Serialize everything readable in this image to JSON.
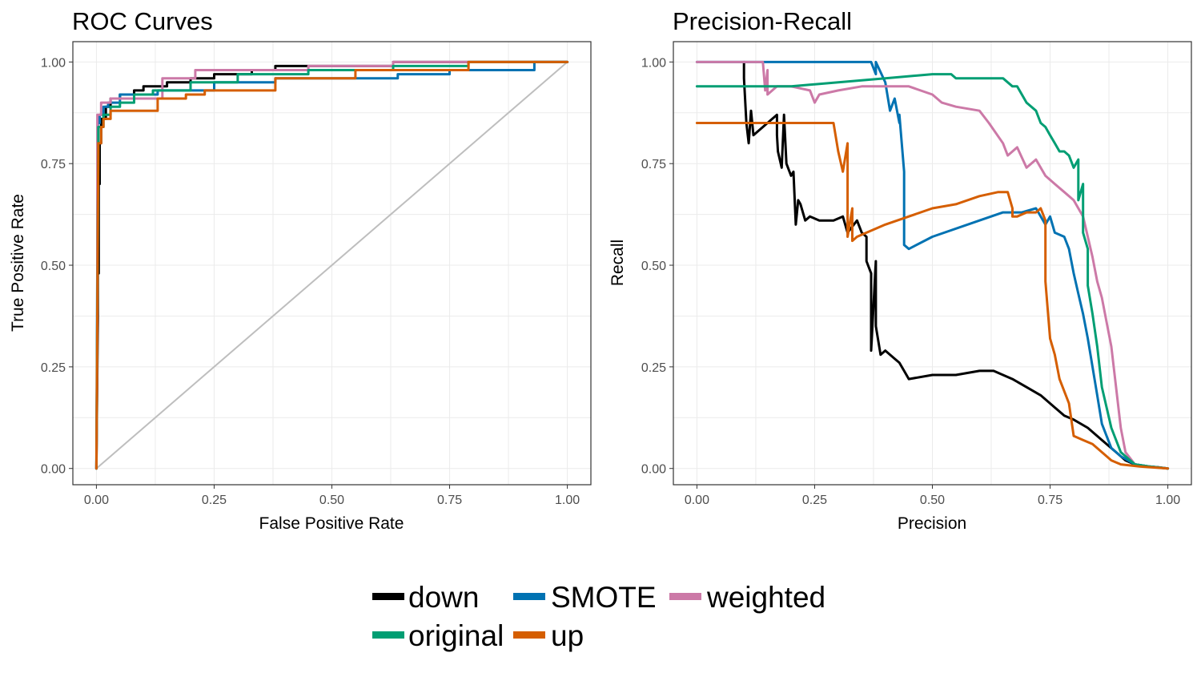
{
  "legend": {
    "items": [
      {
        "label": "down",
        "color": "#000000"
      },
      {
        "label": "SMOTE",
        "color": "#0072B2"
      },
      {
        "label": "weighted",
        "color": "#CC79A7"
      },
      {
        "label": "original",
        "color": "#009E73"
      },
      {
        "label": "up",
        "color": "#D55E00"
      }
    ]
  },
  "chart_data": [
    {
      "type": "line",
      "title": "ROC Curves",
      "xlabel": "False Positive Rate",
      "ylabel": "True Positive Rate",
      "xlim": [
        -0.05,
        1.05
      ],
      "ylim": [
        -0.04,
        1.05
      ],
      "xticks": [
        "0.00",
        "0.25",
        "0.50",
        "0.75",
        "1.00"
      ],
      "yticks": [
        "0.00",
        "0.25",
        "0.50",
        "0.75",
        "1.00"
      ],
      "grid": true,
      "reference_line": {
        "x": [
          0,
          1
        ],
        "y": [
          0,
          1
        ],
        "color": "#bebebe"
      },
      "series": [
        {
          "name": "down",
          "color": "#000000",
          "x": [
            0,
            0.003,
            0.003,
            0.005,
            0.005,
            0.007,
            0.007,
            0.01,
            0.01,
            0.02,
            0.02,
            0.03,
            0.03,
            0.05,
            0.05,
            0.08,
            0.08,
            0.1,
            0.1,
            0.15,
            0.15,
            0.2,
            0.2,
            0.25,
            0.25,
            0.33,
            0.33,
            0.38,
            0.38,
            0.63,
            0.63,
            0.79,
            0.79,
            1.0
          ],
          "y": [
            0,
            0.37,
            0.48,
            0.48,
            0.7,
            0.7,
            0.8,
            0.8,
            0.86,
            0.86,
            0.89,
            0.89,
            0.91,
            0.91,
            0.92,
            0.92,
            0.93,
            0.93,
            0.94,
            0.94,
            0.95,
            0.95,
            0.96,
            0.96,
            0.97,
            0.97,
            0.98,
            0.98,
            0.99,
            0.99,
            1.0,
            1.0,
            1.0,
            1.0
          ]
        },
        {
          "name": "SMOTE",
          "color": "#0072B2",
          "x": [
            0,
            0.003,
            0.003,
            0.007,
            0.007,
            0.015,
            0.015,
            0.025,
            0.025,
            0.05,
            0.05,
            0.13,
            0.13,
            0.25,
            0.25,
            0.38,
            0.38,
            0.64,
            0.64,
            0.75,
            0.75,
            0.93,
            0.93,
            1.0
          ],
          "y": [
            0,
            0.78,
            0.85,
            0.85,
            0.87,
            0.87,
            0.89,
            0.89,
            0.9,
            0.9,
            0.92,
            0.92,
            0.93,
            0.93,
            0.95,
            0.95,
            0.96,
            0.96,
            0.97,
            0.97,
            0.98,
            0.98,
            1.0,
            1.0
          ]
        },
        {
          "name": "weighted",
          "color": "#CC79A7",
          "x": [
            0,
            0.002,
            0.002,
            0.01,
            0.01,
            0.03,
            0.03,
            0.14,
            0.14,
            0.21,
            0.21,
            0.45,
            0.45,
            0.63,
            0.63,
            1.0
          ],
          "y": [
            0,
            0.3,
            0.87,
            0.87,
            0.9,
            0.9,
            0.91,
            0.91,
            0.96,
            0.96,
            0.98,
            0.98,
            0.99,
            0.99,
            1.0,
            1.0
          ]
        },
        {
          "name": "original",
          "color": "#009E73",
          "x": [
            0,
            0.004,
            0.004,
            0.015,
            0.015,
            0.03,
            0.03,
            0.05,
            0.05,
            0.08,
            0.08,
            0.12,
            0.12,
            0.2,
            0.2,
            0.3,
            0.3,
            0.45,
            0.45,
            0.63,
            0.63,
            0.79,
            0.79,
            1.0
          ],
          "y": [
            0,
            0.8,
            0.84,
            0.84,
            0.87,
            0.87,
            0.89,
            0.89,
            0.9,
            0.9,
            0.92,
            0.92,
            0.93,
            0.93,
            0.95,
            0.95,
            0.97,
            0.97,
            0.98,
            0.98,
            0.99,
            0.99,
            1.0,
            1.0
          ]
        },
        {
          "name": "up",
          "color": "#D55E00",
          "x": [
            0,
            0.004,
            0.004,
            0.01,
            0.01,
            0.015,
            0.015,
            0.03,
            0.03,
            0.13,
            0.13,
            0.19,
            0.19,
            0.23,
            0.23,
            0.38,
            0.38,
            0.55,
            0.55,
            0.79,
            0.79,
            1.0
          ],
          "y": [
            0,
            0.78,
            0.8,
            0.8,
            0.84,
            0.84,
            0.86,
            0.86,
            0.88,
            0.88,
            0.91,
            0.91,
            0.92,
            0.92,
            0.93,
            0.93,
            0.96,
            0.96,
            0.98,
            0.98,
            1.0,
            1.0
          ]
        }
      ]
    },
    {
      "type": "line",
      "title": "Precision-Recall",
      "xlabel": "Precision",
      "ylabel": "Recall",
      "xlim": [
        -0.05,
        1.05
      ],
      "ylim": [
        -0.04,
        1.05
      ],
      "xticks": [
        "0.00",
        "0.25",
        "0.50",
        "0.75",
        "1.00"
      ],
      "yticks": [
        "0.00",
        "0.25",
        "0.50",
        "0.75",
        "1.00"
      ],
      "grid": true,
      "series": [
        {
          "name": "down",
          "color": "#000000",
          "x": [
            0.1,
            0.1,
            0.105,
            0.11,
            0.115,
            0.12,
            0.14,
            0.17,
            0.17,
            0.172,
            0.18,
            0.185,
            0.19,
            0.2,
            0.205,
            0.21,
            0.215,
            0.22,
            0.23,
            0.24,
            0.26,
            0.29,
            0.31,
            0.32,
            0.34,
            0.35,
            0.36,
            0.36,
            0.37,
            0.37,
            0.38,
            0.38,
            0.39,
            0.4,
            0.41,
            0.42,
            0.43,
            0.44,
            0.45,
            0.5,
            0.55,
            0.6,
            0.63,
            0.65,
            0.67,
            0.7,
            0.73,
            0.76,
            0.78,
            0.8,
            0.83,
            0.86,
            0.89,
            0.91,
            0.93,
            0.96,
            0.98,
            1.0
          ],
          "y": [
            1.0,
            0.96,
            0.85,
            0.8,
            0.88,
            0.82,
            0.84,
            0.87,
            0.82,
            0.78,
            0.74,
            0.87,
            0.75,
            0.72,
            0.73,
            0.6,
            0.66,
            0.65,
            0.61,
            0.62,
            0.61,
            0.61,
            0.62,
            0.58,
            0.61,
            0.58,
            0.57,
            0.51,
            0.48,
            0.29,
            0.51,
            0.35,
            0.28,
            0.29,
            0.28,
            0.27,
            0.26,
            0.24,
            0.22,
            0.23,
            0.23,
            0.24,
            0.24,
            0.23,
            0.22,
            0.2,
            0.18,
            0.15,
            0.13,
            0.12,
            0.1,
            0.07,
            0.04,
            0.02,
            0.01,
            0.005,
            0.003,
            0.0
          ]
        },
        {
          "name": "SMOTE",
          "color": "#0072B2",
          "x": [
            0.0,
            0.37,
            0.38,
            0.38,
            0.4,
            0.41,
            0.42,
            0.43,
            0.43,
            0.44,
            0.44,
            0.45,
            0.5,
            0.6,
            0.65,
            0.69,
            0.72,
            0.74,
            0.75,
            0.76,
            0.78,
            0.79,
            0.8,
            0.81,
            0.82,
            0.83,
            0.84,
            0.85,
            0.86,
            0.88,
            0.9,
            0.93,
            0.96,
            1.0
          ],
          "y": [
            1.0,
            1.0,
            0.97,
            1.0,
            0.95,
            0.88,
            0.91,
            0.85,
            0.87,
            0.73,
            0.55,
            0.54,
            0.57,
            0.61,
            0.63,
            0.63,
            0.64,
            0.6,
            0.62,
            0.58,
            0.57,
            0.54,
            0.48,
            0.43,
            0.38,
            0.32,
            0.25,
            0.18,
            0.11,
            0.05,
            0.03,
            0.01,
            0.005,
            0.0
          ]
        },
        {
          "name": "weighted",
          "color": "#CC79A7",
          "x": [
            0.0,
            0.14,
            0.145,
            0.15,
            0.15,
            0.17,
            0.2,
            0.24,
            0.25,
            0.26,
            0.3,
            0.35,
            0.4,
            0.45,
            0.5,
            0.52,
            0.55,
            0.6,
            0.62,
            0.65,
            0.66,
            0.68,
            0.7,
            0.72,
            0.74,
            0.76,
            0.78,
            0.8,
            0.82,
            0.83,
            0.84,
            0.85,
            0.86,
            0.87,
            0.88,
            0.89,
            0.9,
            0.91,
            0.93,
            0.96,
            1.0
          ],
          "y": [
            1.0,
            1.0,
            0.93,
            0.98,
            0.92,
            0.94,
            0.94,
            0.93,
            0.9,
            0.92,
            0.93,
            0.94,
            0.94,
            0.94,
            0.92,
            0.9,
            0.89,
            0.88,
            0.85,
            0.8,
            0.77,
            0.79,
            0.74,
            0.76,
            0.72,
            0.7,
            0.68,
            0.66,
            0.62,
            0.57,
            0.52,
            0.46,
            0.42,
            0.36,
            0.3,
            0.2,
            0.1,
            0.04,
            0.01,
            0.005,
            0.0
          ]
        },
        {
          "name": "original",
          "color": "#009E73",
          "x": [
            0.0,
            0.1,
            0.2,
            0.3,
            0.4,
            0.5,
            0.54,
            0.55,
            0.56,
            0.6,
            0.65,
            0.67,
            0.68,
            0.7,
            0.72,
            0.73,
            0.74,
            0.75,
            0.76,
            0.77,
            0.78,
            0.79,
            0.8,
            0.81,
            0.81,
            0.82,
            0.82,
            0.83,
            0.83,
            0.84,
            0.85,
            0.86,
            0.88,
            0.9,
            0.93,
            0.96,
            1.0
          ],
          "y": [
            0.94,
            0.94,
            0.94,
            0.95,
            0.96,
            0.97,
            0.97,
            0.96,
            0.96,
            0.96,
            0.96,
            0.94,
            0.94,
            0.9,
            0.88,
            0.85,
            0.84,
            0.82,
            0.8,
            0.78,
            0.78,
            0.77,
            0.74,
            0.76,
            0.66,
            0.7,
            0.58,
            0.54,
            0.45,
            0.38,
            0.3,
            0.2,
            0.1,
            0.04,
            0.01,
            0.005,
            0.0
          ]
        },
        {
          "name": "up",
          "color": "#D55E00",
          "x": [
            0.0,
            0.29,
            0.3,
            0.31,
            0.32,
            0.32,
            0.33,
            0.33,
            0.34,
            0.36,
            0.4,
            0.45,
            0.5,
            0.55,
            0.6,
            0.64,
            0.66,
            0.67,
            0.67,
            0.68,
            0.7,
            0.72,
            0.73,
            0.74,
            0.74,
            0.75,
            0.76,
            0.77,
            0.79,
            0.8,
            0.82,
            0.84,
            0.86,
            0.88,
            0.9,
            0.94,
            1.0
          ],
          "y": [
            0.85,
            0.85,
            0.78,
            0.73,
            0.8,
            0.57,
            0.64,
            0.56,
            0.57,
            0.58,
            0.6,
            0.62,
            0.64,
            0.65,
            0.67,
            0.68,
            0.68,
            0.64,
            0.62,
            0.62,
            0.63,
            0.63,
            0.64,
            0.61,
            0.46,
            0.32,
            0.28,
            0.22,
            0.16,
            0.08,
            0.07,
            0.06,
            0.04,
            0.02,
            0.01,
            0.005,
            0.0
          ]
        }
      ]
    }
  ]
}
